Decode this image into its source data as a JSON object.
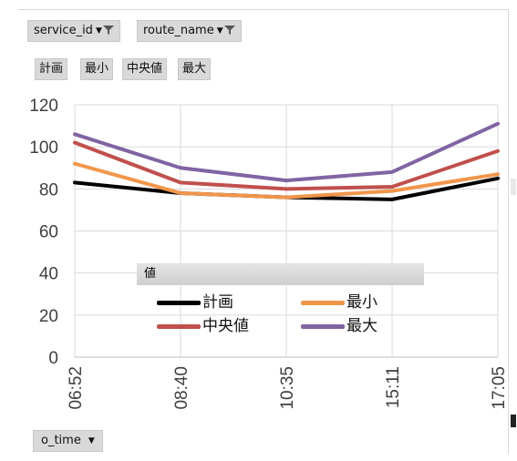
{
  "filters": {
    "report_filters": [
      {
        "label": "service_id",
        "icon": "filter-icon"
      },
      {
        "label": "route_name",
        "icon": "filter-icon"
      }
    ],
    "values_fields": [
      "計画",
      "最小",
      "中央値",
      "最大"
    ],
    "axis_field": {
      "label": "o_time",
      "icon": "dropdown-icon"
    }
  },
  "legend": {
    "title": "値"
  },
  "chart_data": {
    "type": "line",
    "categories": [
      "06:52",
      "08:40",
      "10:35",
      "15:11",
      "17:05"
    ],
    "ylim": [
      0,
      120
    ],
    "yticks": [
      0,
      20,
      40,
      60,
      80,
      100,
      120
    ],
    "grid": true,
    "legend_position": "center",
    "series": [
      {
        "name": "計画",
        "color": "#000000",
        "values": [
          83,
          78,
          76,
          75,
          85
        ]
      },
      {
        "name": "最小",
        "color": "#f0964a",
        "values": [
          92,
          78,
          76,
          79,
          87
        ]
      },
      {
        "name": "中央値",
        "color": "#c0504d",
        "values": [
          102,
          83,
          80,
          81,
          98
        ]
      },
      {
        "name": "最大",
        "color": "#8064a2",
        "values": [
          106,
          90,
          84,
          88,
          111
        ]
      }
    ]
  }
}
